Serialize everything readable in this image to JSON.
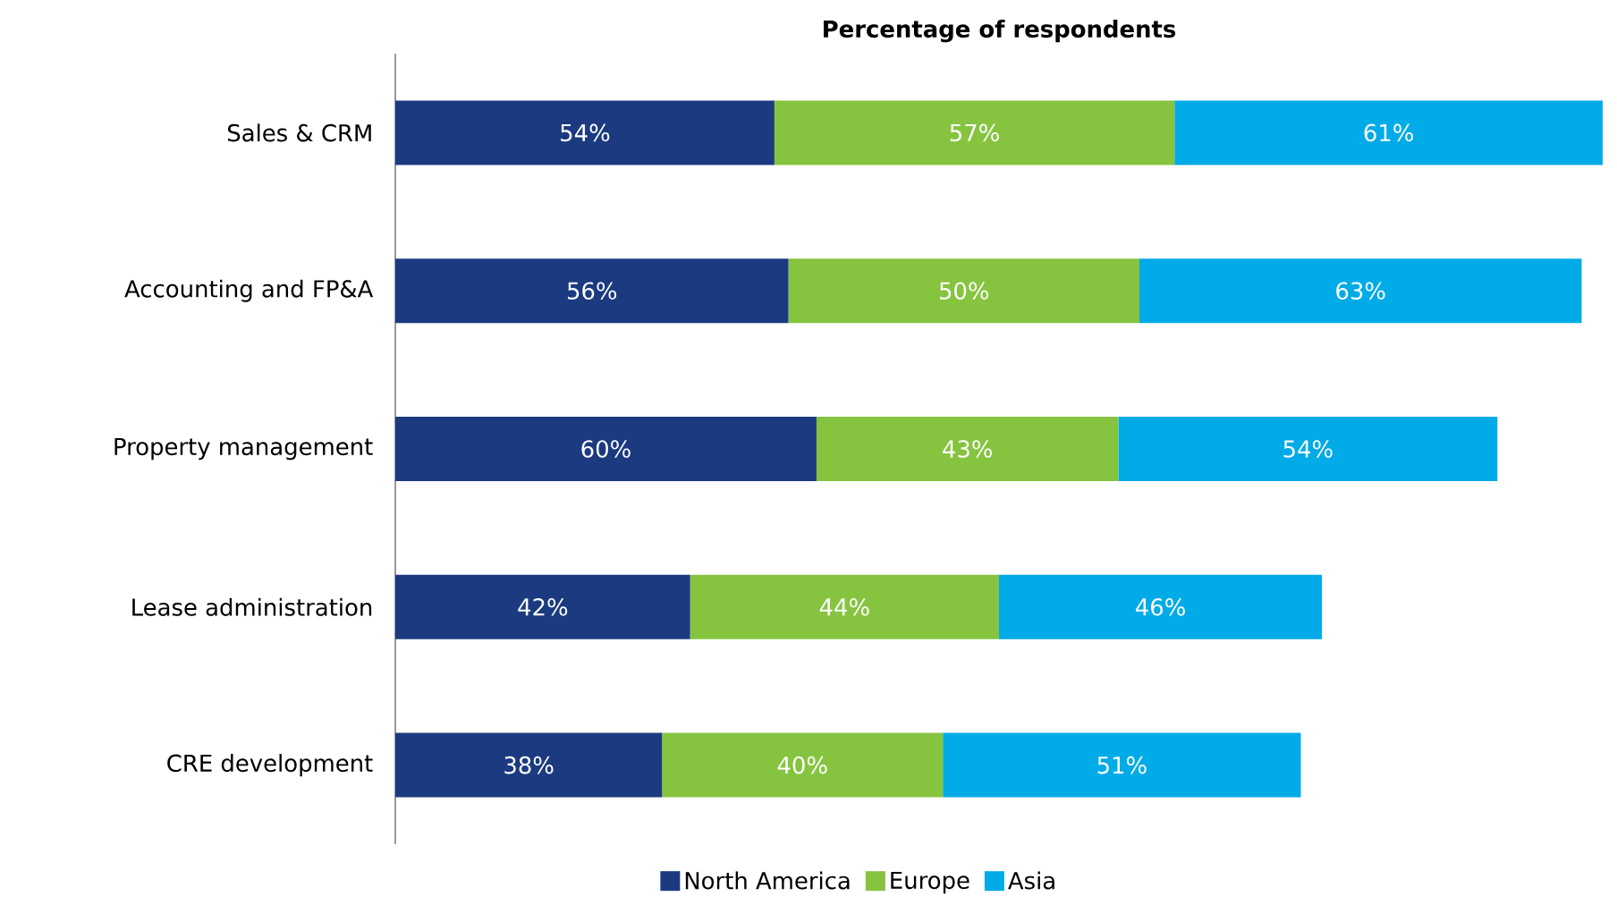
{
  "chart_data": {
    "type": "bar",
    "orientation": "horizontal",
    "stacked": true,
    "title": "Percentage of respondents",
    "legend": "bottom",
    "categories": [
      "Sales & CRM",
      "Accounting and FP&A",
      "Property management",
      "Lease administration",
      "CRE development"
    ],
    "series": [
      {
        "name": "North America",
        "color": "#1b3a80",
        "values": [
          54,
          56,
          60,
          42,
          38
        ],
        "value_labels": [
          "54%",
          "56%",
          "60%",
          "42%",
          "38%"
        ]
      },
      {
        "name": "Europe",
        "color": "#86c440",
        "values": [
          57,
          50,
          43,
          44,
          40
        ],
        "value_labels": [
          "57%",
          "50%",
          "43%",
          "44%",
          "40%"
        ]
      },
      {
        "name": "Asia",
        "color": "#00abe7",
        "values": [
          61,
          63,
          54,
          46,
          51
        ],
        "value_labels": [
          "61%",
          "63%",
          "54%",
          "46%",
          "51%"
        ]
      }
    ]
  }
}
